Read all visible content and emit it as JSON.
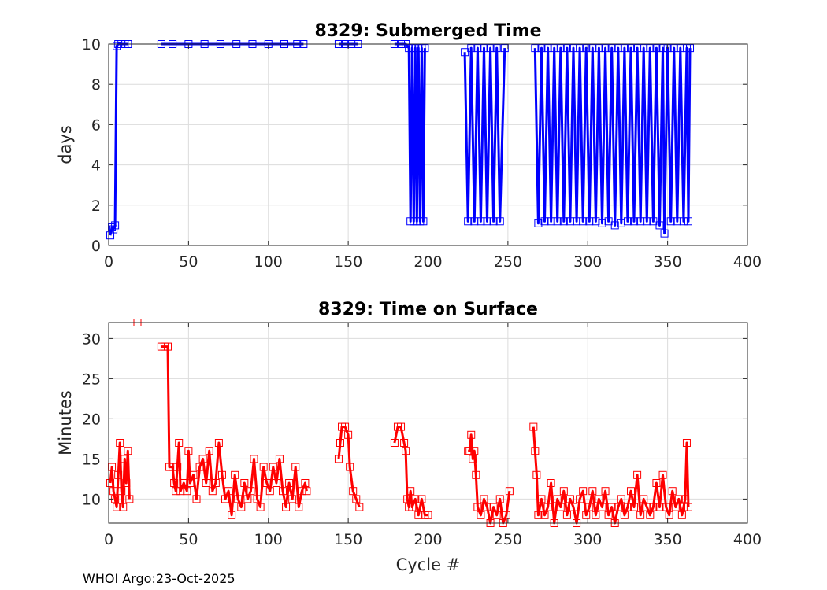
{
  "footer": "WHOI Argo:23-Oct-2025",
  "chart_data": [
    {
      "type": "line",
      "title": "8329: Submerged Time",
      "xlabel": "",
      "ylabel": "days",
      "xlim": [
        0,
        400
      ],
      "ylim": [
        0,
        10
      ],
      "xticks": [
        0,
        50,
        100,
        150,
        200,
        250,
        300,
        350,
        400
      ],
      "yticks": [
        0,
        2,
        4,
        6,
        8,
        10
      ],
      "grid": true,
      "color": "#0000ff",
      "marker": "square",
      "segments": [
        [
          [
            1,
            0.5
          ],
          [
            2,
            0.9
          ],
          [
            3,
            0.8
          ],
          [
            4,
            1.0
          ],
          [
            5,
            9.9
          ],
          [
            6,
            10.0
          ],
          [
            8,
            10.0
          ],
          [
            10,
            10.0
          ],
          [
            12,
            10.0
          ]
        ],
        [
          [
            33,
            10.0
          ],
          [
            40,
            10.0
          ],
          [
            50,
            10.0
          ],
          [
            60,
            10.0
          ],
          [
            70,
            10.0
          ],
          [
            80,
            10.0
          ],
          [
            90,
            10.0
          ],
          [
            100,
            10.0
          ],
          [
            110,
            10.0
          ],
          [
            118,
            10.0
          ],
          [
            122,
            10.0
          ]
        ],
        [
          [
            144,
            10.0
          ],
          [
            148,
            10.0
          ],
          [
            152,
            10.0
          ],
          [
            156,
            10.0
          ]
        ],
        [
          [
            179,
            10.0
          ],
          [
            183,
            10.0
          ],
          [
            186,
            10.0
          ],
          [
            188,
            9.8
          ],
          [
            189,
            1.2
          ],
          [
            190,
            9.8
          ],
          [
            191,
            1.2
          ],
          [
            192,
            9.8
          ],
          [
            193,
            1.2
          ],
          [
            194,
            9.8
          ],
          [
            195,
            1.2
          ],
          [
            196,
            9.8
          ],
          [
            197,
            1.2
          ],
          [
            198,
            9.8
          ]
        ],
        [
          [
            223,
            9.6
          ],
          [
            225,
            1.2
          ],
          [
            227,
            9.8
          ],
          [
            229,
            1.2
          ],
          [
            231,
            9.8
          ],
          [
            233,
            1.2
          ],
          [
            235,
            9.8
          ],
          [
            237,
            1.2
          ],
          [
            239,
            9.8
          ],
          [
            241,
            1.2
          ],
          [
            243,
            9.8
          ],
          [
            245,
            1.2
          ],
          [
            248,
            9.8
          ]
        ],
        [
          [
            267,
            9.8
          ],
          [
            269,
            1.1
          ],
          [
            271,
            9.8
          ],
          [
            273,
            1.2
          ],
          [
            275,
            9.8
          ],
          [
            277,
            1.2
          ],
          [
            279,
            9.8
          ],
          [
            281,
            1.2
          ],
          [
            283,
            9.8
          ],
          [
            285,
            1.2
          ],
          [
            287,
            9.8
          ],
          [
            289,
            1.2
          ],
          [
            291,
            9.8
          ],
          [
            293,
            1.2
          ],
          [
            295,
            9.8
          ],
          [
            297,
            1.2
          ],
          [
            299,
            9.8
          ],
          [
            301,
            1.2
          ],
          [
            303,
            9.8
          ],
          [
            305,
            1.2
          ],
          [
            307,
            9.8
          ],
          [
            309,
            1.1
          ],
          [
            311,
            9.8
          ],
          [
            313,
            1.2
          ],
          [
            315,
            9.8
          ],
          [
            317,
            1.0
          ],
          [
            319,
            9.8
          ],
          [
            321,
            1.1
          ],
          [
            323,
            9.8
          ],
          [
            325,
            1.2
          ],
          [
            327,
            9.8
          ],
          [
            329,
            1.2
          ],
          [
            331,
            9.8
          ],
          [
            333,
            1.2
          ],
          [
            335,
            9.8
          ],
          [
            337,
            1.2
          ],
          [
            339,
            9.8
          ],
          [
            341,
            1.2
          ],
          [
            343,
            9.8
          ],
          [
            345,
            1.0
          ],
          [
            347,
            9.8
          ],
          [
            348,
            0.6
          ],
          [
            350,
            9.8
          ],
          [
            352,
            1.2
          ],
          [
            354,
            9.8
          ],
          [
            356,
            1.2
          ],
          [
            358,
            9.8
          ],
          [
            360,
            1.2
          ],
          [
            362,
            9.8
          ],
          [
            363,
            1.2
          ],
          [
            364,
            9.8
          ]
        ]
      ]
    },
    {
      "type": "line",
      "title": "8329: Time on Surface",
      "xlabel": "Cycle #",
      "ylabel": "Minutes",
      "xlim": [
        0,
        400
      ],
      "ylim": [
        7,
        32
      ],
      "xticks": [
        0,
        50,
        100,
        150,
        200,
        250,
        300,
        350,
        400
      ],
      "yticks": [
        10,
        15,
        20,
        25,
        30
      ],
      "grid": true,
      "color": "#ff0000",
      "marker": "square",
      "segments": [
        [
          [
            1,
            12
          ],
          [
            2,
            14
          ],
          [
            3,
            11
          ],
          [
            4,
            10
          ],
          [
            5,
            9
          ],
          [
            6,
            13
          ],
          [
            7,
            17
          ],
          [
            8,
            11
          ],
          [
            9,
            9
          ],
          [
            10,
            15
          ],
          [
            11,
            12
          ],
          [
            12,
            16
          ],
          [
            13,
            10
          ]
        ],
        [
          [
            18,
            32
          ]
        ],
        [
          [
            33,
            29
          ],
          [
            35,
            29
          ],
          [
            37,
            29
          ],
          [
            38,
            14
          ],
          [
            40,
            14
          ],
          [
            41,
            12
          ],
          [
            42,
            11
          ],
          [
            43,
            14
          ],
          [
            44,
            17
          ],
          [
            45,
            11
          ],
          [
            47,
            12
          ],
          [
            49,
            11
          ],
          [
            50,
            16
          ],
          [
            51,
            12
          ],
          [
            53,
            13
          ],
          [
            55,
            10
          ],
          [
            57,
            14
          ],
          [
            59,
            15
          ],
          [
            61,
            12
          ],
          [
            63,
            16
          ],
          [
            65,
            11
          ],
          [
            67,
            12
          ],
          [
            69,
            17
          ],
          [
            71,
            13
          ],
          [
            73,
            10
          ],
          [
            75,
            11
          ],
          [
            77,
            8
          ],
          [
            79,
            13
          ],
          [
            81,
            10
          ],
          [
            83,
            9
          ],
          [
            85,
            12
          ],
          [
            87,
            10
          ],
          [
            89,
            11
          ],
          [
            91,
            15
          ],
          [
            93,
            10
          ],
          [
            95,
            9
          ],
          [
            97,
            14
          ],
          [
            99,
            12
          ],
          [
            101,
            11
          ],
          [
            103,
            14
          ],
          [
            105,
            12
          ],
          [
            107,
            15
          ],
          [
            109,
            11
          ],
          [
            111,
            9
          ],
          [
            113,
            12
          ],
          [
            115,
            10
          ],
          [
            117,
            14
          ],
          [
            119,
            9
          ],
          [
            121,
            11
          ],
          [
            123,
            12
          ],
          [
            124,
            11
          ]
        ],
        [
          [
            144,
            15
          ],
          [
            145,
            17
          ],
          [
            146,
            19
          ],
          [
            148,
            19
          ],
          [
            150,
            18
          ],
          [
            151,
            14
          ],
          [
            153,
            11
          ],
          [
            155,
            10
          ],
          [
            157,
            9
          ]
        ],
        [
          [
            179,
            17
          ],
          [
            181,
            19
          ],
          [
            183,
            19
          ],
          [
            185,
            17
          ],
          [
            186,
            16
          ],
          [
            187,
            10
          ],
          [
            188,
            9
          ],
          [
            189,
            11
          ],
          [
            190,
            9
          ],
          [
            192,
            10
          ],
          [
            194,
            8
          ],
          [
            196,
            10
          ],
          [
            198,
            8
          ],
          [
            200,
            8
          ]
        ],
        [
          [
            225,
            16
          ],
          [
            226,
            16
          ],
          [
            227,
            18
          ],
          [
            228,
            15
          ],
          [
            229,
            16
          ],
          [
            230,
            13
          ],
          [
            231,
            9
          ],
          [
            233,
            8
          ],
          [
            235,
            10
          ],
          [
            237,
            9
          ],
          [
            239,
            7
          ],
          [
            241,
            9
          ],
          [
            243,
            8
          ],
          [
            245,
            10
          ],
          [
            247,
            7
          ],
          [
            249,
            8
          ],
          [
            251,
            11
          ]
        ],
        [
          [
            266,
            19
          ],
          [
            267,
            16
          ],
          [
            268,
            13
          ],
          [
            269,
            8
          ],
          [
            271,
            10
          ],
          [
            273,
            8
          ],
          [
            275,
            9
          ],
          [
            277,
            12
          ],
          [
            279,
            7
          ],
          [
            281,
            10
          ],
          [
            283,
            9
          ],
          [
            285,
            11
          ],
          [
            287,
            8
          ],
          [
            289,
            10
          ],
          [
            291,
            9
          ],
          [
            293,
            7
          ],
          [
            295,
            10
          ],
          [
            297,
            11
          ],
          [
            299,
            8
          ],
          [
            301,
            9
          ],
          [
            303,
            11
          ],
          [
            305,
            8
          ],
          [
            307,
            10
          ],
          [
            309,
            9
          ],
          [
            311,
            11
          ],
          [
            313,
            8
          ],
          [
            315,
            9
          ],
          [
            317,
            7
          ],
          [
            319,
            9
          ],
          [
            321,
            10
          ],
          [
            323,
            8
          ],
          [
            325,
            9
          ],
          [
            327,
            11
          ],
          [
            329,
            9
          ],
          [
            331,
            13
          ],
          [
            333,
            8
          ],
          [
            335,
            10
          ],
          [
            337,
            9
          ],
          [
            339,
            8
          ],
          [
            341,
            9
          ],
          [
            343,
            12
          ],
          [
            345,
            9
          ],
          [
            347,
            13
          ],
          [
            349,
            9
          ],
          [
            351,
            8
          ],
          [
            353,
            11
          ],
          [
            355,
            9
          ],
          [
            357,
            10
          ],
          [
            359,
            8
          ],
          [
            360,
            9
          ],
          [
            361,
            10
          ],
          [
            362,
            17
          ],
          [
            363,
            9
          ]
        ]
      ]
    }
  ]
}
